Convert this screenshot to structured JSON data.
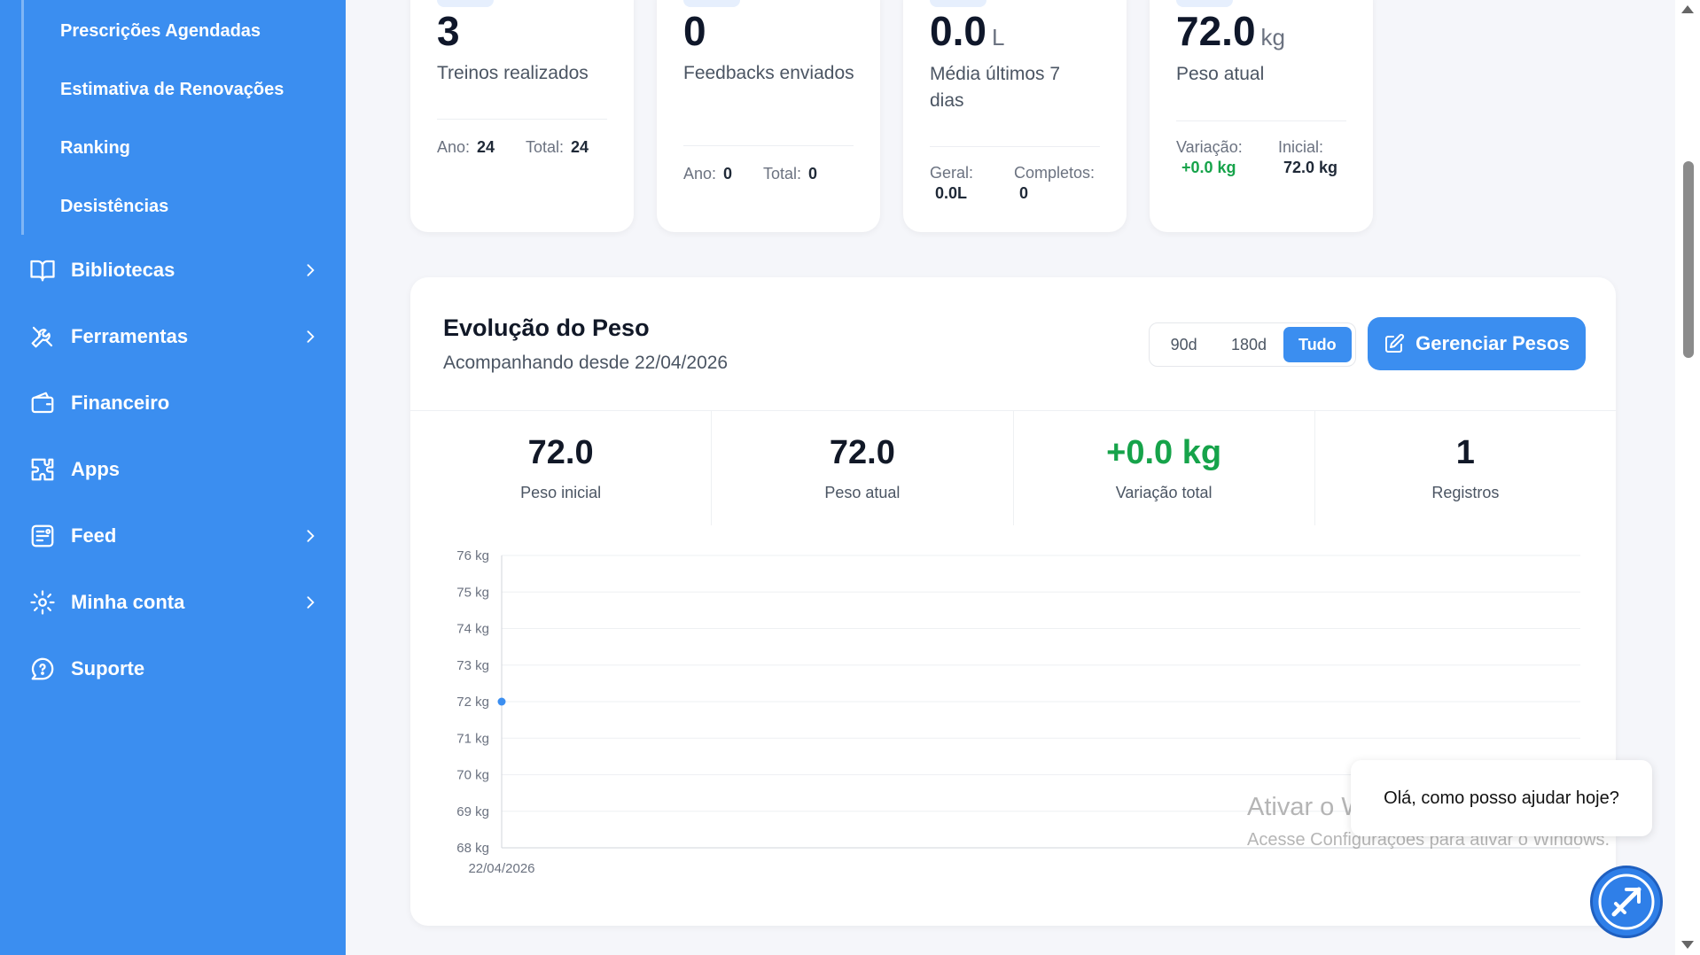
{
  "sidebar": {
    "sub_items": [
      "Prescrições Agendadas",
      "Estimativa de Renovações",
      "Ranking",
      "Desistências"
    ],
    "items": [
      {
        "label": "Bibliotecas",
        "icon": "book-icon",
        "has_chevron": true
      },
      {
        "label": "Ferramentas",
        "icon": "tools-icon",
        "has_chevron": true
      },
      {
        "label": "Financeiro",
        "icon": "wallet-icon",
        "has_chevron": false
      },
      {
        "label": "Apps",
        "icon": "puzzle-icon",
        "has_chevron": false
      },
      {
        "label": "Feed",
        "icon": "feed-icon",
        "has_chevron": true
      },
      {
        "label": "Minha conta",
        "icon": "gear-icon",
        "has_chevron": true
      },
      {
        "label": "Suporte",
        "icon": "help-chat-icon",
        "has_chevron": false
      }
    ]
  },
  "stats": {
    "workouts": {
      "value": "3",
      "label": "Treinos realizados",
      "year_label": "Ano:",
      "year_value": "24",
      "total_label": "Total:",
      "total_value": "24"
    },
    "feedbacks": {
      "value": "0",
      "label": "Feedbacks enviados",
      "year_label": "Ano:",
      "year_value": "0",
      "total_label": "Total:",
      "total_value": "0"
    },
    "water": {
      "value": "0.0",
      "unit": "L",
      "label": "Média últimos 7 dias",
      "general_label": "Geral:",
      "general_value": "0.0L",
      "complete_label": "Completos:",
      "complete_value": "0"
    },
    "weight": {
      "value": "72.0",
      "unit": "kg",
      "label": "Peso atual",
      "variation_label": "Variação:",
      "variation_value": "+0.0 kg",
      "initial_label": "Inicial:",
      "initial_value": "72.0 kg"
    }
  },
  "weight_card": {
    "title": "Evolução do Peso",
    "subtitle": "Acompanhando desde 22/04/2026",
    "ranges": [
      "90d",
      "180d",
      "Tudo"
    ],
    "active_range": "Tudo",
    "manage_label": "Gerenciar Pesos",
    "summary": [
      {
        "value": "72.0",
        "label": "Peso inicial"
      },
      {
        "value": "72.0",
        "label": "Peso atual"
      },
      {
        "value": "+0.0 kg",
        "label": "Variação total"
      },
      {
        "value": "1",
        "label": "Registros"
      }
    ]
  },
  "chart_data": {
    "type": "line",
    "x": [
      "22/04/2026"
    ],
    "series": [
      {
        "values": [
          72
        ]
      }
    ],
    "y_ticks": [
      "68 kg",
      "69 kg",
      "70 kg",
      "71 kg",
      "72 kg",
      "73 kg",
      "74 kg",
      "75 kg",
      "76 kg"
    ],
    "ylim": [
      68,
      76
    ],
    "grid": true,
    "color": "#3b8ef0"
  },
  "watermark": {
    "line1": "Ativar o Windows",
    "line2": "Acesse Configurações para ativar o Windows."
  },
  "chat": {
    "greeting": "Olá, como posso ajudar hoje?"
  },
  "colors": {
    "primary": "#3b8ef0",
    "positive": "#16a34a"
  }
}
